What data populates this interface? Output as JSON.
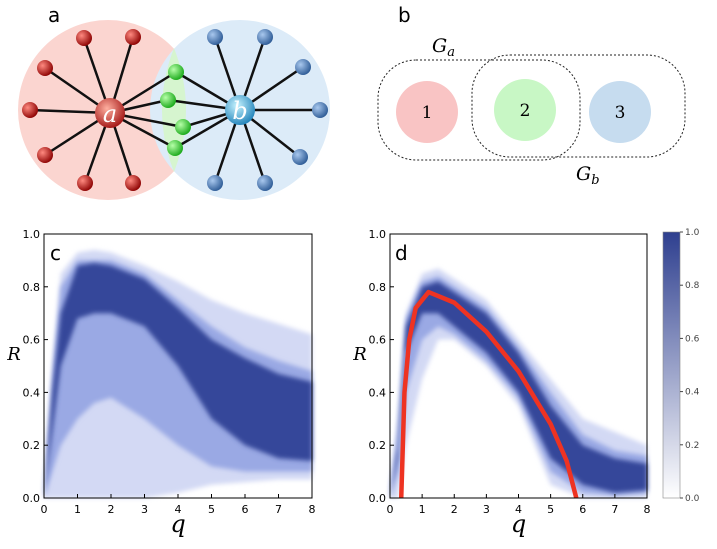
{
  "panel_labels": [
    "a",
    "b",
    "c",
    "d"
  ],
  "diagram_a": {
    "hubs": [
      "a",
      "b"
    ]
  },
  "diagram_b": {
    "nodes": [
      "1",
      "2",
      "3"
    ],
    "groups": [
      {
        "symbol": "G",
        "subscript": "a"
      },
      {
        "symbol": "G",
        "subscript": "b"
      }
    ]
  },
  "colorbar": {
    "color_low": "#ffffff",
    "color_high": "#2e3f8f",
    "ticks": [
      {
        "value": 0,
        "label": "0.0"
      },
      0.2,
      0.4,
      0.6,
      0.8,
      {
        "value": 1,
        "label": "1.0"
      }
    ]
  },
  "chart_data": [
    {
      "type": "band",
      "x_label": "q",
      "y_label": "R",
      "xlim": [
        0,
        8
      ],
      "ylim": [
        0,
        1
      ],
      "xticks": [
        0,
        1,
        2,
        3,
        4,
        5,
        6,
        7,
        8
      ],
      "yticks": [
        {
          "value": 0,
          "label": "0.0"
        },
        0.2,
        0.4,
        0.6,
        0.8,
        {
          "value": 1,
          "label": "1.0"
        }
      ],
      "x": [
        0,
        0.25,
        0.5,
        1,
        1.5,
        2,
        3,
        4,
        5,
        6,
        7,
        8
      ],
      "series": [
        {
          "color": "#d3d9f4",
          "lower": [
            0,
            0,
            0,
            0,
            0,
            0,
            0,
            0.02,
            0.05,
            0.06,
            0.07,
            0.07
          ],
          "upper": [
            0,
            0.5,
            0.85,
            0.93,
            0.94,
            0.93,
            0.88,
            0.82,
            0.75,
            0.7,
            0.66,
            0.62
          ]
        },
        {
          "color": "#9aa9e4",
          "lower": [
            0,
            0.1,
            0.2,
            0.3,
            0.36,
            0.38,
            0.3,
            0.2,
            0.12,
            0.1,
            0.1,
            0.1
          ],
          "upper": [
            0,
            0.45,
            0.8,
            0.9,
            0.9,
            0.9,
            0.85,
            0.75,
            0.65,
            0.57,
            0.52,
            0.48
          ]
        },
        {
          "color": "#34479a",
          "lower": [
            0,
            0.25,
            0.5,
            0.68,
            0.7,
            0.7,
            0.65,
            0.5,
            0.3,
            0.2,
            0.15,
            0.14
          ],
          "upper": [
            0,
            0.4,
            0.7,
            0.88,
            0.89,
            0.88,
            0.83,
            0.72,
            0.6,
            0.53,
            0.47,
            0.44
          ]
        }
      ]
    },
    {
      "type": "band",
      "x_label": "q",
      "y_label": "R",
      "xlim": [
        0,
        8
      ],
      "ylim": [
        0,
        1
      ],
      "xticks": [
        0,
        1,
        2,
        3,
        4,
        5,
        6,
        7,
        8
      ],
      "yticks": [
        {
          "value": 0,
          "label": "0.0"
        },
        0.2,
        0.4,
        0.6,
        0.8,
        {
          "value": 1,
          "label": "1.0"
        }
      ],
      "x": [
        0,
        0.25,
        0.5,
        1,
        1.5,
        2,
        3,
        4,
        5,
        6,
        7,
        8
      ],
      "series": [
        {
          "color": "#d3d9f4",
          "lower": [
            0,
            0,
            0.2,
            0.45,
            0.6,
            0.6,
            0.5,
            0.35,
            0.05,
            0,
            0,
            0
          ],
          "upper": [
            0.05,
            0.3,
            0.7,
            0.85,
            0.87,
            0.83,
            0.75,
            0.6,
            0.45,
            0.3,
            0.25,
            0.2
          ]
        },
        {
          "color": "#9aa9e4",
          "lower": [
            0,
            0.1,
            0.4,
            0.6,
            0.65,
            0.62,
            0.52,
            0.38,
            0.1,
            0.02,
            0.01,
            0.02
          ],
          "upper": [
            0,
            0.25,
            0.68,
            0.82,
            0.84,
            0.8,
            0.72,
            0.57,
            0.4,
            0.24,
            0.18,
            0.16
          ]
        },
        {
          "color": "#34479a",
          "lower": [
            0,
            0.15,
            0.55,
            0.7,
            0.7,
            0.65,
            0.55,
            0.4,
            0.15,
            0.05,
            0.02,
            0.03
          ],
          "upper": [
            0,
            0.2,
            0.65,
            0.8,
            0.82,
            0.78,
            0.7,
            0.55,
            0.35,
            0.2,
            0.15,
            0.13
          ]
        }
      ],
      "curve": {
        "color": "#ee3322",
        "x": [
          0.35,
          0.45,
          0.6,
          0.8,
          1.2,
          2,
          3,
          4,
          5,
          5.5,
          5.8
        ],
        "values": [
          0,
          0.4,
          0.6,
          0.72,
          0.78,
          0.74,
          0.63,
          0.48,
          0.28,
          0.14,
          0
        ]
      }
    }
  ]
}
